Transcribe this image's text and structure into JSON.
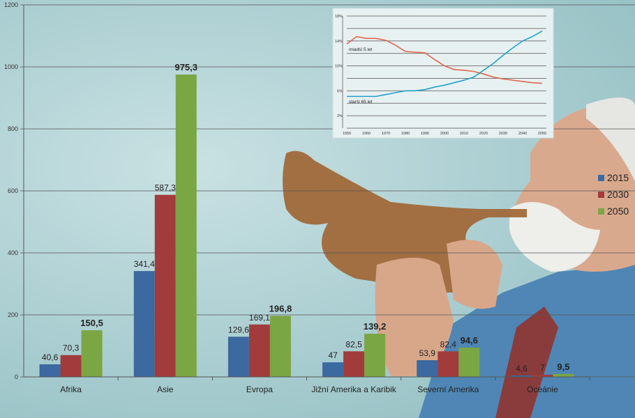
{
  "chart_data": [
    {
      "type": "bar",
      "categories": [
        "Afrika",
        "Asie",
        "Evropa",
        "Jižní Amerika a Karibik",
        "Severní Amerika",
        "Oceánie"
      ],
      "series": [
        {
          "name": "2015",
          "color": "#3b69a0",
          "values": [
            40.6,
            341.4,
            129.6,
            47,
            53.9,
            4.6
          ],
          "labels": [
            "40,6",
            "341,4",
            "129,6",
            "47",
            "53,9",
            "4,6"
          ]
        },
        {
          "name": "2030",
          "color": "#a23b3b",
          "values": [
            70.3,
            587.3,
            169.1,
            82.5,
            82.4,
            7
          ],
          "labels": [
            "70,3",
            "587,3",
            "169,1",
            "82,5",
            "82,4",
            "7"
          ]
        },
        {
          "name": "2050",
          "color": "#7ba644",
          "values": [
            150.5,
            975.3,
            196.8,
            139.2,
            94.6,
            9.5
          ],
          "labels": [
            "150,5",
            "975,3",
            "196,8",
            "139,2",
            "94,6",
            "9,5"
          ]
        }
      ],
      "ylim": [
        0,
        1200
      ],
      "yticks": [
        "0",
        "200",
        "400",
        "600",
        "800",
        "1000",
        "1200"
      ],
      "grid": true,
      "legend": "right"
    },
    {
      "type": "line",
      "x": [
        1950,
        1955,
        1960,
        1965,
        1970,
        1975,
        1980,
        1985,
        1990,
        1995,
        2000,
        2005,
        2010,
        2015,
        2020,
        2025,
        2030,
        2035,
        2040,
        2045,
        2050
      ],
      "xticks": [
        "1950",
        "1960",
        "1970",
        "1980",
        "1990",
        "2000",
        "2010",
        "2020",
        "2030",
        "2040",
        "2050"
      ],
      "yticks": [
        "2%",
        "6%",
        "10%",
        "14%",
        "18%"
      ],
      "ylim": [
        0,
        18
      ],
      "series": [
        {
          "name": "mladší 5 let",
          "color": "#e0674a",
          "values": [
            13.5,
            14.7,
            14.4,
            14.4,
            14.1,
            13.3,
            12.3,
            12.2,
            12.1,
            11,
            10,
            9.4,
            9.3,
            9.1,
            8.7,
            8.2,
            7.9,
            7.7,
            7.5,
            7.3,
            7.2
          ]
        },
        {
          "name": "starší 65 let",
          "color": "#1ea3c8",
          "values": [
            5.1,
            5.1,
            5.1,
            5.1,
            5.4,
            5.7,
            6.0,
            6.0,
            6.2,
            6.6,
            6.9,
            7.3,
            7.7,
            8.2,
            9.3,
            10.4,
            11.7,
            12.9,
            14.0,
            14.7,
            15.6
          ]
        }
      ],
      "grid": true
    }
  ]
}
